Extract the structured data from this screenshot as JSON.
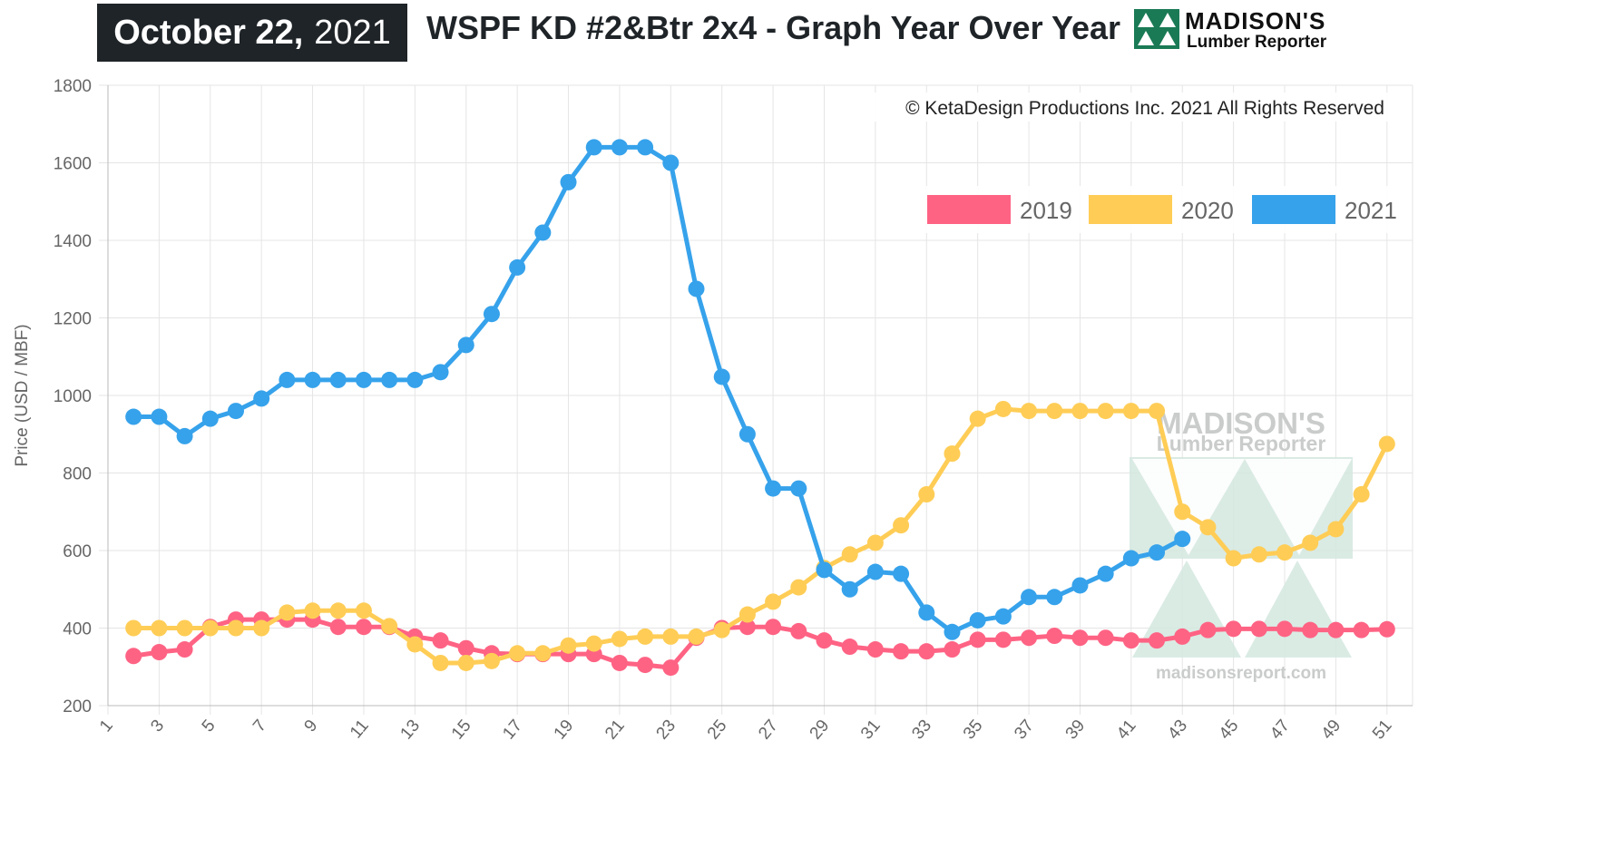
{
  "header": {
    "date_month_day": "October 22,",
    "date_year": "2021",
    "title": "WSPF KD #2&Btr 2x4 - Graph Year Over Year",
    "logo_name": "MADISON'S",
    "logo_sub": "Lumber Reporter"
  },
  "copyright": "© KetaDesign Productions Inc. 2021 All Rights Reserved",
  "watermark": {
    "name": "MADISON'S",
    "sub": "Lumber Reporter",
    "url": "madisonsreport.com"
  },
  "colors": {
    "2019": "#ff6384",
    "2020": "#ffcd56",
    "2021": "#36a2eb",
    "grid": "#e5e5e5",
    "axis_text": "#666666"
  },
  "chart_data": {
    "type": "line",
    "ylabel": "Price (USD / MBF)",
    "xlabel": "",
    "ylim": [
      200,
      1800
    ],
    "yticks": [
      200,
      400,
      600,
      800,
      1000,
      1200,
      1400,
      1600,
      1800
    ],
    "xlim": [
      1,
      52
    ],
    "xticks": [
      1,
      3,
      5,
      7,
      9,
      11,
      13,
      15,
      17,
      19,
      21,
      23,
      25,
      27,
      29,
      31,
      33,
      35,
      37,
      39,
      41,
      43,
      45,
      47,
      49,
      51
    ],
    "legend_position": "top-right",
    "grid": true,
    "series": [
      {
        "name": "2019",
        "x": [
          2,
          3,
          4,
          5,
          6,
          7,
          8,
          9,
          10,
          11,
          12,
          13,
          14,
          15,
          16,
          17,
          18,
          19,
          20,
          21,
          22,
          23,
          24,
          25,
          26,
          27,
          28,
          29,
          30,
          31,
          32,
          33,
          34,
          35,
          36,
          37,
          38,
          39,
          40,
          41,
          42,
          43,
          44,
          45,
          46,
          47,
          48,
          49,
          50,
          51
        ],
        "values": [
          328,
          338,
          345,
          403,
          422,
          422,
          422,
          422,
          403,
          403,
          403,
          378,
          368,
          348,
          335,
          333,
          333,
          333,
          333,
          310,
          305,
          298,
          375,
          400,
          403,
          403,
          392,
          368,
          352,
          345,
          340,
          340,
          345,
          370,
          370,
          375,
          380,
          375,
          375,
          368,
          368,
          378,
          395,
          398,
          398,
          398,
          395,
          395,
          395,
          397
        ]
      },
      {
        "name": "2020",
        "x": [
          2,
          3,
          4,
          5,
          6,
          7,
          8,
          9,
          10,
          11,
          12,
          13,
          14,
          15,
          16,
          17,
          18,
          19,
          20,
          21,
          22,
          23,
          24,
          25,
          26,
          27,
          28,
          29,
          30,
          31,
          32,
          33,
          34,
          35,
          36,
          37,
          38,
          39,
          40,
          41,
          42,
          43,
          44,
          45,
          46,
          47,
          48,
          49,
          50,
          51
        ],
        "values": [
          400,
          400,
          400,
          400,
          400,
          400,
          440,
          445,
          445,
          445,
          405,
          358,
          310,
          310,
          315,
          335,
          335,
          355,
          360,
          372,
          378,
          378,
          378,
          395,
          435,
          468,
          505,
          555,
          590,
          620,
          665,
          745,
          850,
          940,
          965,
          960,
          960,
          960,
          960,
          960,
          960,
          700,
          660,
          580,
          590,
          595,
          620,
          655,
          745,
          875
        ]
      },
      {
        "name": "2021",
        "x": [
          2,
          3,
          4,
          5,
          6,
          7,
          8,
          9,
          10,
          11,
          12,
          13,
          14,
          15,
          16,
          17,
          18,
          19,
          20,
          21,
          22,
          23,
          24,
          25,
          26,
          27,
          28,
          29,
          30,
          31,
          32,
          33,
          34,
          35,
          36,
          37,
          38,
          39,
          40,
          41,
          42,
          43
        ],
        "values": [
          945,
          945,
          895,
          940,
          960,
          992,
          1040,
          1040,
          1040,
          1040,
          1040,
          1040,
          1060,
          1130,
          1210,
          1330,
          1420,
          1550,
          1640,
          1640,
          1640,
          1600,
          1275,
          1048,
          900,
          760,
          760,
          550,
          500,
          545,
          540,
          440,
          390,
          420,
          430,
          480,
          480,
          510,
          540,
          580,
          595,
          630
        ]
      }
    ]
  }
}
